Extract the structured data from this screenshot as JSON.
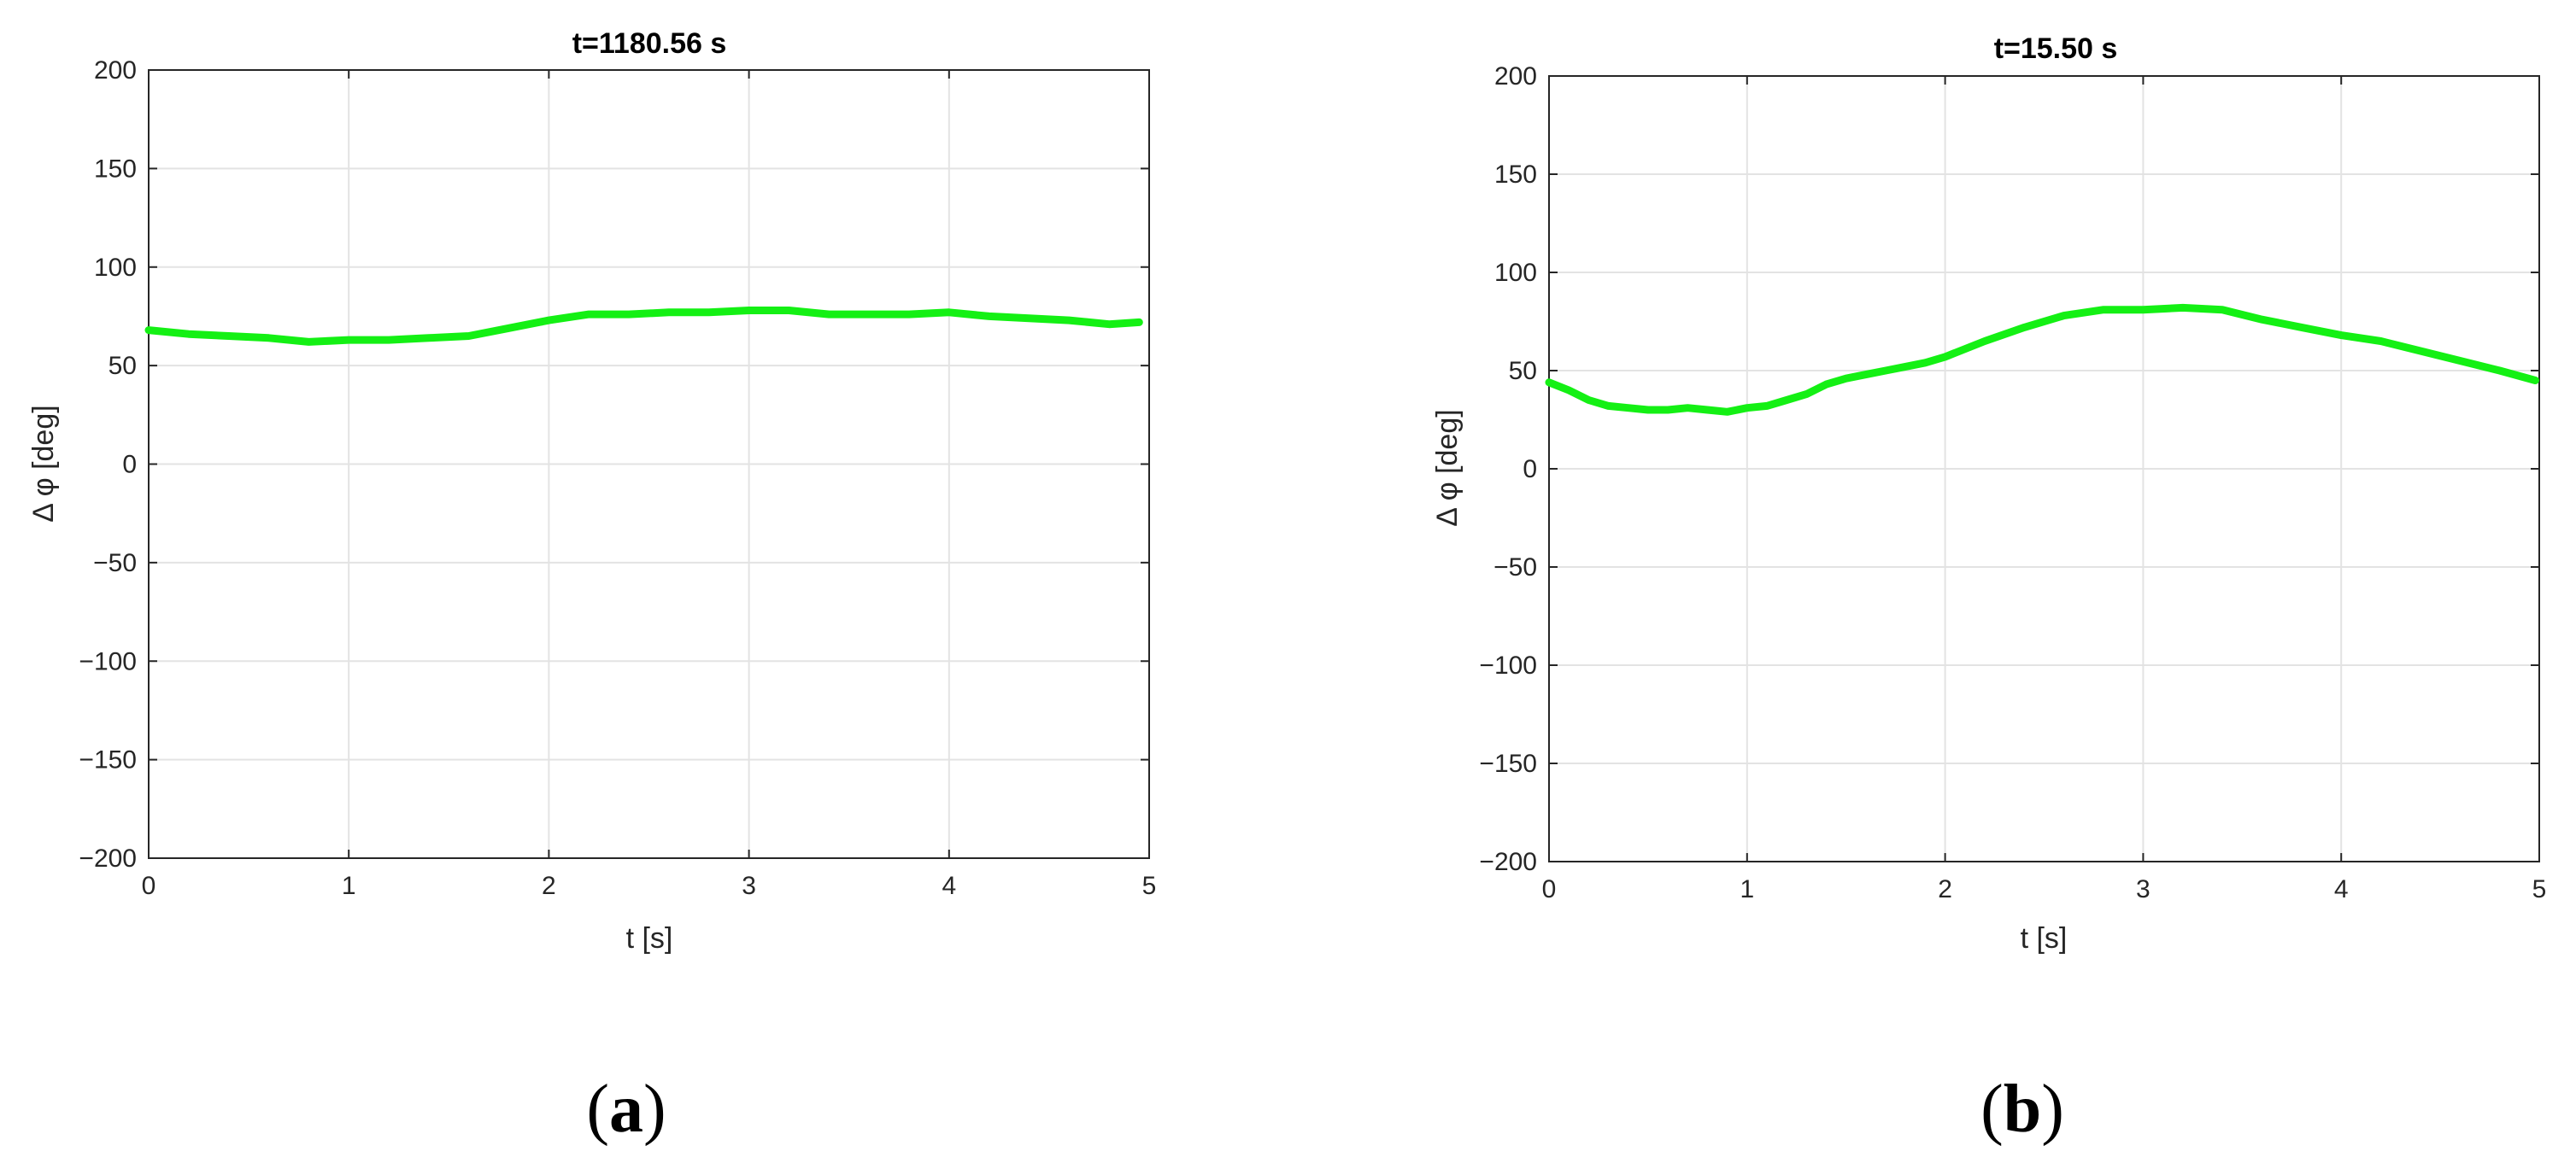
{
  "colors": {
    "series": "#14f014",
    "grid": "#e3e3e3",
    "axis": "#262626"
  },
  "chart_data": [
    {
      "type": "line",
      "panel": "(a)",
      "panel_letter": "a",
      "title": "t=1180.56 s",
      "xlabel": "t [s]",
      "ylabel": "Δ φ [deg]",
      "xlim": [
        0,
        5
      ],
      "ylim": [
        -200,
        200
      ],
      "xticks": [
        0,
        1,
        2,
        3,
        4,
        5
      ],
      "yticks": [
        -200,
        -150,
        -100,
        -50,
        0,
        50,
        100,
        150,
        200
      ],
      "xtick_labels": [
        "0",
        "1",
        "2",
        "3",
        "4",
        "5"
      ],
      "ytick_labels": [
        "−200",
        "−150",
        "−100",
        "−50",
        "0",
        "50",
        "100",
        "150",
        "200"
      ],
      "grid": true,
      "series": [
        {
          "x": [
            0,
            0.2,
            0.4,
            0.6,
            0.8,
            1.0,
            1.2,
            1.4,
            1.6,
            1.8,
            2.0,
            2.2,
            2.4,
            2.6,
            2.8,
            3.0,
            3.2,
            3.4,
            3.6,
            3.8,
            4.0,
            4.2,
            4.4,
            4.6,
            4.8,
            4.95
          ],
          "y": [
            68,
            66,
            65,
            64,
            62,
            63,
            63,
            64,
            65,
            69,
            73,
            76,
            76,
            77,
            77,
            78,
            78,
            76,
            76,
            76,
            77,
            75,
            74,
            73,
            71,
            72
          ]
        }
      ]
    },
    {
      "type": "line",
      "panel": "(b)",
      "panel_letter": "b",
      "title": "t=15.50 s",
      "xlabel": "t [s]",
      "ylabel": "Δ φ [deg]",
      "xlim": [
        0,
        5
      ],
      "ylim": [
        -200,
        200
      ],
      "xticks": [
        0,
        1,
        2,
        3,
        4,
        5
      ],
      "yticks": [
        -200,
        -150,
        -100,
        -50,
        0,
        50,
        100,
        150,
        200
      ],
      "xtick_labels": [
        "0",
        "1",
        "2",
        "3",
        "4",
        "5"
      ],
      "ytick_labels": [
        "−200",
        "−150",
        "−100",
        "−50",
        "0",
        "50",
        "100",
        "150",
        "200"
      ],
      "grid": true,
      "series": [
        {
          "x": [
            0,
            0.1,
            0.2,
            0.3,
            0.4,
            0.5,
            0.6,
            0.7,
            0.8,
            0.9,
            1.0,
            1.1,
            1.2,
            1.3,
            1.4,
            1.5,
            1.6,
            1.7,
            1.8,
            1.9,
            2.0,
            2.2,
            2.4,
            2.6,
            2.8,
            3.0,
            3.2,
            3.4,
            3.6,
            3.8,
            4.0,
            4.2,
            4.4,
            4.6,
            4.8,
            4.98
          ],
          "y": [
            44,
            40,
            35,
            32,
            31,
            30,
            30,
            31,
            30,
            29,
            31,
            32,
            35,
            38,
            43,
            46,
            48,
            50,
            52,
            54,
            57,
            65,
            72,
            78,
            81,
            81,
            82,
            81,
            76,
            72,
            68,
            65,
            60,
            55,
            50,
            45
          ]
        }
      ]
    }
  ]
}
